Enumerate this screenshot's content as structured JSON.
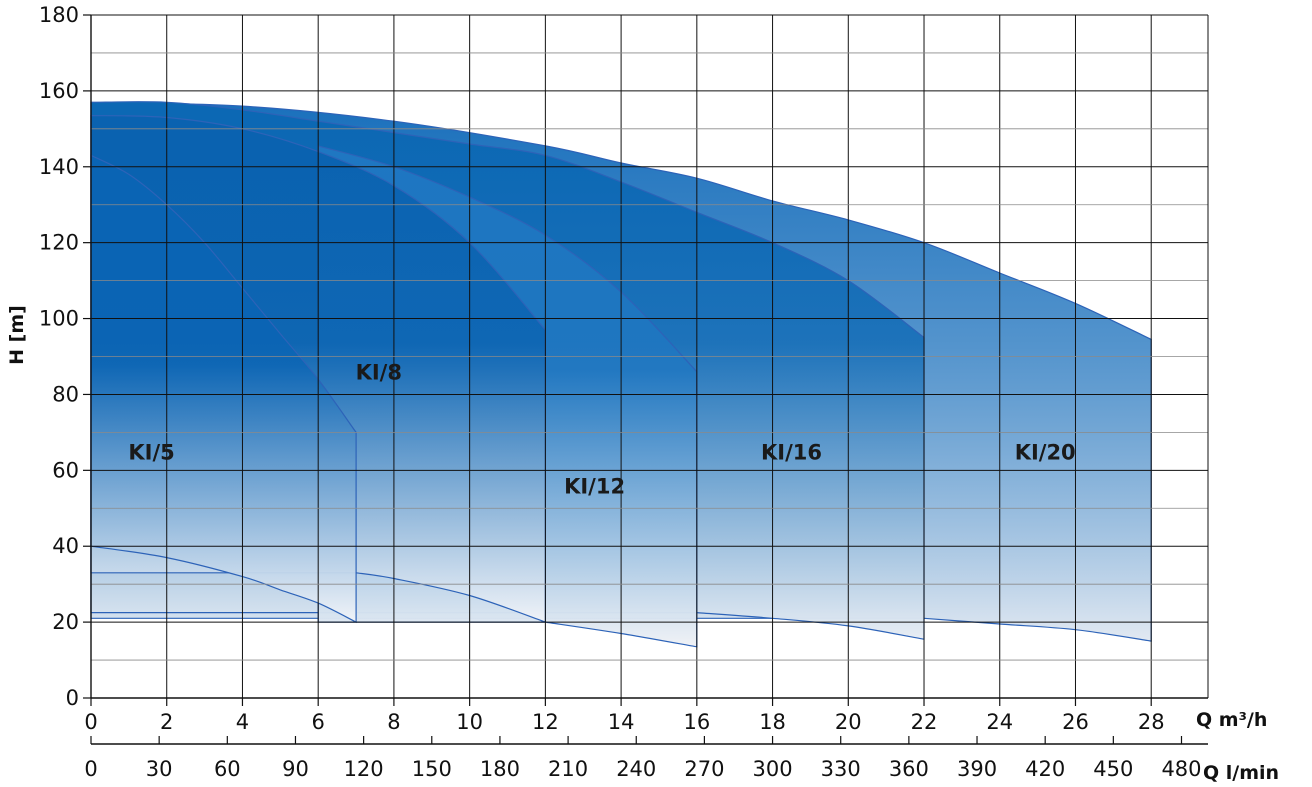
{
  "chart_data": {
    "type": "area",
    "title": "",
    "ylabel": "H [m]",
    "xlabel": "Q m³/h",
    "xlabel_secondary": "Q l/min",
    "ylim": [
      0,
      180
    ],
    "xlim": [
      0,
      29.5
    ],
    "x_ticks": [
      0,
      2,
      4,
      6,
      8,
      10,
      12,
      14,
      16,
      18,
      20,
      22,
      24,
      26,
      28
    ],
    "y_ticks": [
      0,
      20,
      40,
      60,
      80,
      100,
      120,
      140,
      160,
      180
    ],
    "x2_ticks": [
      0,
      30,
      60,
      90,
      120,
      150,
      180,
      210,
      240,
      270,
      300,
      330,
      360,
      390,
      420,
      450,
      480
    ],
    "grid": true,
    "legend": "none",
    "series": [
      {
        "name": "KI/5",
        "color_dark": "#0a64b4",
        "color_light": "#f0f3f8",
        "label_at": [
          1.6,
          65
        ],
        "upper": [
          [
            0,
            143
          ],
          [
            1,
            138
          ],
          [
            2,
            130
          ],
          [
            3,
            120
          ],
          [
            4,
            108
          ],
          [
            5,
            96
          ],
          [
            6,
            84
          ],
          [
            7,
            70
          ]
        ],
        "lower": [
          [
            0,
            40
          ],
          [
            2,
            37
          ],
          [
            4,
            32
          ],
          [
            5,
            28.5
          ],
          [
            6,
            25
          ],
          [
            7,
            20
          ]
        ]
      },
      {
        "name": "KI/8",
        "color_dark": "#0a62b0",
        "color_light": "#f0f3f8",
        "label_at": [
          7.6,
          86
        ],
        "upper": [
          [
            0,
            153.5
          ],
          [
            2,
            153
          ],
          [
            4,
            150
          ],
          [
            6,
            144
          ],
          [
            8,
            135
          ],
          [
            10,
            120
          ],
          [
            12,
            97
          ]
        ],
        "lower": [
          [
            7,
            33
          ],
          [
            8,
            31.5
          ],
          [
            10,
            27
          ],
          [
            12,
            20
          ]
        ]
      },
      {
        "name": "KI/12",
        "color_dark": "#1f77c2",
        "color_light": "#f0f2f6",
        "label_at": [
          13.3,
          56
        ],
        "upper": [
          [
            6,
            145.5
          ],
          [
            8,
            140
          ],
          [
            10,
            132
          ],
          [
            12,
            122
          ],
          [
            14,
            107
          ],
          [
            16,
            86
          ]
        ],
        "lower": [
          [
            12,
            20
          ],
          [
            14,
            17
          ],
          [
            16,
            13.5
          ]
        ]
      },
      {
        "name": "KI/16",
        "color_dark": "#0c68b4",
        "color_light": "#e8edf4",
        "label_at": [
          18.5,
          65
        ],
        "upper": [
          [
            0,
            157
          ],
          [
            2,
            157
          ],
          [
            4,
            155
          ],
          [
            6,
            152
          ],
          [
            8,
            149
          ],
          [
            10,
            146
          ],
          [
            12,
            143
          ],
          [
            14,
            136
          ],
          [
            16,
            128
          ],
          [
            18,
            120
          ],
          [
            20,
            110
          ],
          [
            22,
            95
          ]
        ],
        "lower": [
          [
            16,
            22.5
          ],
          [
            18,
            21
          ],
          [
            20,
            19
          ],
          [
            22,
            15.5
          ]
        ]
      },
      {
        "name": "KI/20",
        "color_dark": "#1a70bc",
        "color_light": "#e2e9f2",
        "label_at": [
          25.2,
          65
        ],
        "upper": [
          [
            0,
            157
          ],
          [
            4,
            156
          ],
          [
            8,
            152
          ],
          [
            12,
            145.5
          ],
          [
            14,
            141
          ],
          [
            16,
            137
          ],
          [
            18,
            131
          ],
          [
            20,
            126
          ],
          [
            22,
            120
          ],
          [
            24,
            112
          ],
          [
            26,
            104
          ],
          [
            28,
            94.5
          ]
        ],
        "lower": [
          [
            22,
            21
          ],
          [
            24,
            19.5
          ],
          [
            26,
            18
          ],
          [
            28,
            15
          ]
        ]
      }
    ]
  }
}
